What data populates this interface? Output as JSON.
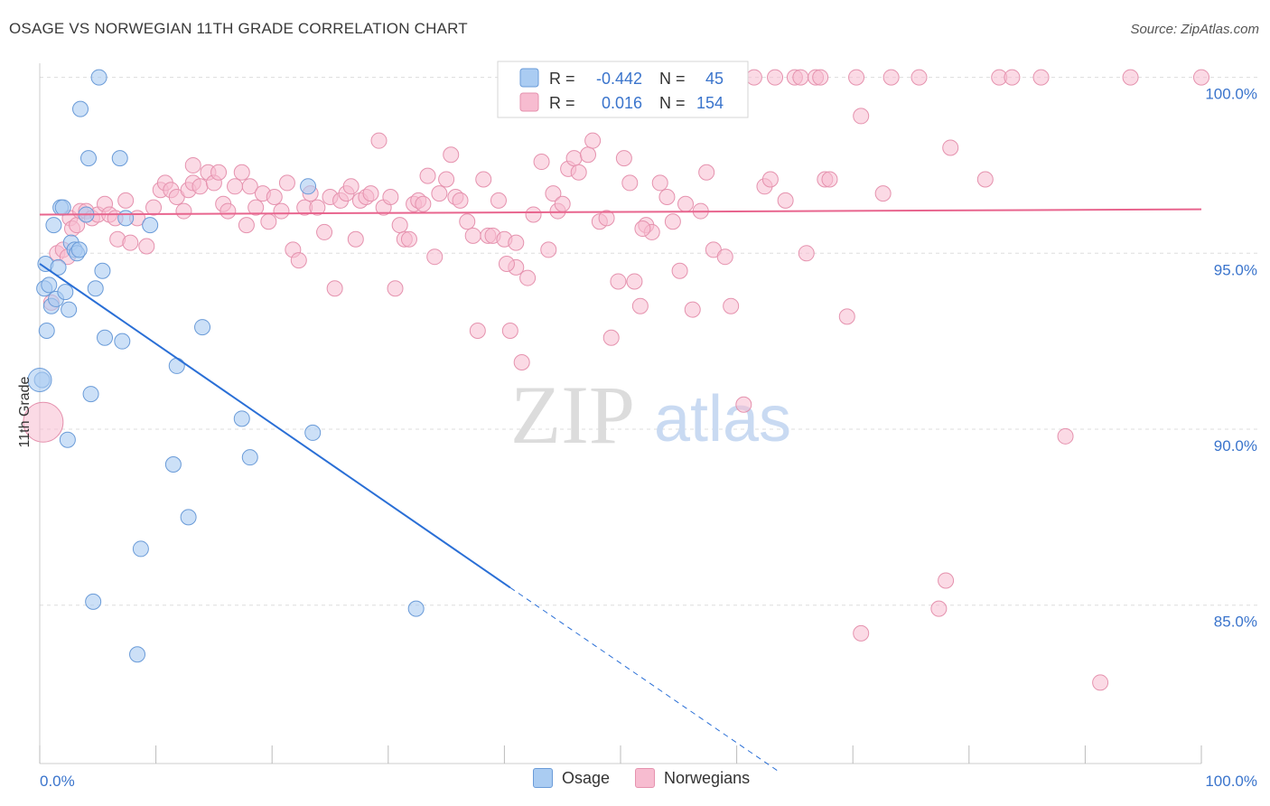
{
  "header": {
    "title": "OSAGE VS NORWEGIAN 11TH GRADE CORRELATION CHART",
    "source": "Source: ZipAtlas.com"
  },
  "watermark": {
    "zip": "ZIP",
    "atlas": "atlas"
  },
  "legend_box": {
    "rows": [
      {
        "r_label": "R =",
        "r_value": "-0.442",
        "n_label": "N =",
        "n_value": "45"
      },
      {
        "r_label": "R =",
        "r_value": "0.016",
        "n_label": "N =",
        "n_value": "154"
      }
    ]
  },
  "bottom_legend": {
    "osage": "Osage",
    "norwegians": "Norwegians"
  },
  "colors": {
    "osage_fill": "#aaccf2",
    "osage_stroke": "#6a9bd8",
    "osage_line": "#2a6fd6",
    "norw_fill": "#f7bcd0",
    "norw_stroke": "#e592ae",
    "norw_line": "#e8658e",
    "tick_blue": "#3a74cc",
    "grid": "#dddddd"
  },
  "chart_data": {
    "type": "scatter",
    "title": "OSAGE VS NORWEGIAN 11TH GRADE CORRELATION CHART",
    "xlabel": "",
    "ylabel": "11th Grade",
    "xlim": [
      0,
      100
    ],
    "ylim": [
      80.5,
      100.4
    ],
    "x_tick_labels": [
      "0.0%",
      "100.0%"
    ],
    "y_ticks": [
      {
        "value": 100,
        "label": "100.0%"
      },
      {
        "value": 95,
        "label": "95.0%"
      },
      {
        "value": 90,
        "label": "90.0%"
      },
      {
        "value": 85,
        "label": "85.0%"
      }
    ],
    "grid": true,
    "legend_position": "top-center",
    "series": [
      {
        "name": "Osage",
        "r": -0.442,
        "n": 45,
        "trend": {
          "x": [
            0,
            40.5
          ],
          "y": [
            94.7,
            85.5
          ],
          "extension_x": [
            40.5,
            63.5
          ],
          "extension_y": [
            85.5,
            80.3
          ]
        },
        "points": [
          [
            0.2,
            91.4
          ],
          [
            0.4,
            94.0
          ],
          [
            0.5,
            94.7
          ],
          [
            0.6,
            92.8
          ],
          [
            0.8,
            94.1
          ],
          [
            1.0,
            93.5
          ],
          [
            1.2,
            95.8
          ],
          [
            1.4,
            93.7
          ],
          [
            1.6,
            94.6
          ],
          [
            1.8,
            96.3
          ],
          [
            2.0,
            96.3
          ],
          [
            2.2,
            93.9
          ],
          [
            2.4,
            89.7
          ],
          [
            2.5,
            93.4
          ],
          [
            2.7,
            95.3
          ],
          [
            3.0,
            95.1
          ],
          [
            3.2,
            95.0
          ],
          [
            3.4,
            95.1
          ],
          [
            3.5,
            99.1
          ],
          [
            4.0,
            96.1
          ],
          [
            4.2,
            97.7
          ],
          [
            4.4,
            91.0
          ],
          [
            4.6,
            85.1
          ],
          [
            4.8,
            94.0
          ],
          [
            5.1,
            100.0
          ],
          [
            5.4,
            94.5
          ],
          [
            5.6,
            92.6
          ],
          [
            6.9,
            97.7
          ],
          [
            7.1,
            92.5
          ],
          [
            7.4,
            96.0
          ],
          [
            8.4,
            83.6
          ],
          [
            8.7,
            86.6
          ],
          [
            9.5,
            95.8
          ],
          [
            11.5,
            89.0
          ],
          [
            11.8,
            91.8
          ],
          [
            12.8,
            87.5
          ],
          [
            14.0,
            92.9
          ],
          [
            17.4,
            90.3
          ],
          [
            18.1,
            89.2
          ],
          [
            23.1,
            96.9
          ],
          [
            23.5,
            89.9
          ],
          [
            32.4,
            84.9
          ]
        ],
        "big_points": [
          [
            0.0,
            91.4
          ]
        ]
      },
      {
        "name": "Norwegians",
        "r": 0.016,
        "n": 154,
        "trend": {
          "x": [
            0,
            100
          ],
          "y": [
            96.1,
            96.25
          ]
        },
        "big_points": [
          [
            0.3,
            90.2
          ]
        ],
        "points": [
          [
            1.0,
            93.6
          ],
          [
            1.5,
            95.0
          ],
          [
            2.0,
            95.1
          ],
          [
            2.4,
            94.9
          ],
          [
            2.6,
            96.0
          ],
          [
            2.8,
            95.7
          ],
          [
            3.2,
            95.8
          ],
          [
            3.5,
            96.2
          ],
          [
            4.0,
            96.2
          ],
          [
            4.5,
            96.0
          ],
          [
            5.0,
            96.1
          ],
          [
            5.6,
            96.4
          ],
          [
            6.0,
            96.1
          ],
          [
            6.5,
            96.0
          ],
          [
            6.7,
            95.4
          ],
          [
            7.4,
            96.5
          ],
          [
            7.8,
            95.3
          ],
          [
            8.4,
            96.0
          ],
          [
            9.2,
            95.2
          ],
          [
            9.8,
            96.3
          ],
          [
            10.4,
            96.8
          ],
          [
            10.8,
            97.0
          ],
          [
            11.3,
            96.8
          ],
          [
            11.8,
            96.6
          ],
          [
            12.4,
            96.2
          ],
          [
            12.8,
            96.8
          ],
          [
            13.2,
            97.0
          ],
          [
            13.2,
            97.5
          ],
          [
            13.8,
            96.9
          ],
          [
            14.5,
            97.3
          ],
          [
            15.0,
            97.0
          ],
          [
            15.4,
            97.3
          ],
          [
            15.8,
            96.4
          ],
          [
            16.2,
            96.2
          ],
          [
            16.8,
            96.9
          ],
          [
            17.4,
            97.3
          ],
          [
            17.8,
            95.8
          ],
          [
            18.1,
            96.9
          ],
          [
            18.6,
            96.3
          ],
          [
            19.2,
            96.7
          ],
          [
            19.7,
            95.9
          ],
          [
            20.2,
            96.6
          ],
          [
            20.8,
            96.2
          ],
          [
            21.3,
            97.0
          ],
          [
            21.8,
            95.1
          ],
          [
            22.3,
            94.8
          ],
          [
            22.8,
            96.3
          ],
          [
            23.3,
            96.7
          ],
          [
            23.9,
            96.3
          ],
          [
            24.5,
            95.6
          ],
          [
            25.0,
            96.6
          ],
          [
            25.4,
            94.0
          ],
          [
            25.9,
            96.5
          ],
          [
            26.4,
            96.7
          ],
          [
            26.8,
            96.9
          ],
          [
            27.2,
            95.4
          ],
          [
            27.6,
            96.5
          ],
          [
            28.1,
            96.6
          ],
          [
            28.5,
            96.7
          ],
          [
            29.2,
            98.2
          ],
          [
            29.6,
            96.3
          ],
          [
            30.2,
            96.6
          ],
          [
            30.6,
            94.0
          ],
          [
            31.0,
            95.8
          ],
          [
            31.4,
            95.4
          ],
          [
            31.8,
            95.4
          ],
          [
            32.2,
            96.4
          ],
          [
            32.6,
            96.5
          ],
          [
            33.0,
            96.4
          ],
          [
            33.4,
            97.2
          ],
          [
            34.0,
            94.9
          ],
          [
            34.4,
            96.7
          ],
          [
            35.0,
            97.1
          ],
          [
            35.4,
            97.8
          ],
          [
            35.8,
            96.6
          ],
          [
            36.2,
            96.5
          ],
          [
            36.8,
            95.9
          ],
          [
            37.3,
            95.5
          ],
          [
            37.7,
            92.8
          ],
          [
            38.2,
            97.1
          ],
          [
            38.6,
            95.5
          ],
          [
            39.0,
            95.5
          ],
          [
            39.5,
            96.5
          ],
          [
            40.0,
            95.4
          ],
          [
            40.5,
            92.8
          ],
          [
            41.0,
            94.6
          ],
          [
            41.5,
            91.9
          ],
          [
            42.0,
            94.3
          ],
          [
            42.5,
            96.1
          ],
          [
            43.2,
            97.6
          ],
          [
            43.8,
            95.1
          ],
          [
            44.2,
            96.7
          ],
          [
            44.6,
            96.2
          ],
          [
            45.0,
            96.4
          ],
          [
            45.5,
            97.4
          ],
          [
            46.0,
            97.7
          ],
          [
            46.4,
            97.3
          ],
          [
            47.2,
            97.8
          ],
          [
            47.6,
            98.2
          ],
          [
            48.2,
            95.9
          ],
          [
            48.8,
            96.0
          ],
          [
            49.2,
            92.6
          ],
          [
            49.8,
            94.2
          ],
          [
            50.3,
            97.7
          ],
          [
            50.8,
            97.0
          ],
          [
            51.2,
            94.2
          ],
          [
            51.7,
            93.5
          ],
          [
            52.2,
            95.8
          ],
          [
            52.7,
            95.6
          ],
          [
            53.4,
            97.0
          ],
          [
            54.0,
            96.6
          ],
          [
            54.5,
            95.9
          ],
          [
            55.1,
            94.5
          ],
          [
            55.6,
            96.4
          ],
          [
            56.2,
            93.4
          ],
          [
            56.9,
            96.2
          ],
          [
            57.4,
            97.3
          ],
          [
            58.0,
            95.1
          ],
          [
            58.4,
            99.9
          ],
          [
            59.0,
            94.9
          ],
          [
            59.5,
            93.5
          ],
          [
            60.2,
            100.0
          ],
          [
            60.6,
            90.7
          ],
          [
            61.5,
            100.0
          ],
          [
            62.4,
            96.9
          ],
          [
            62.9,
            97.1
          ],
          [
            63.3,
            100.0
          ],
          [
            64.2,
            96.5
          ],
          [
            65.0,
            100.0
          ],
          [
            65.5,
            100.0
          ],
          [
            66.0,
            95.0
          ],
          [
            66.8,
            100.0
          ],
          [
            67.2,
            100.0
          ],
          [
            67.6,
            97.1
          ],
          [
            68.0,
            97.1
          ],
          [
            69.5,
            93.2
          ],
          [
            70.3,
            100.0
          ],
          [
            70.7,
            98.9
          ],
          [
            70.7,
            84.2
          ],
          [
            72.6,
            96.7
          ],
          [
            73.3,
            100.0
          ],
          [
            75.7,
            100.0
          ],
          [
            77.4,
            84.9
          ],
          [
            78.0,
            85.7
          ],
          [
            78.4,
            98.0
          ],
          [
            81.4,
            97.1
          ],
          [
            82.6,
            100.0
          ],
          [
            83.7,
            100.0
          ],
          [
            86.2,
            100.0
          ],
          [
            88.3,
            89.8
          ],
          [
            91.3,
            82.8
          ],
          [
            93.9,
            100.0
          ],
          [
            100.0,
            100.0
          ],
          [
            40.2,
            94.7
          ],
          [
            41.0,
            95.3
          ],
          [
            51.9,
            95.7
          ]
        ]
      }
    ]
  }
}
